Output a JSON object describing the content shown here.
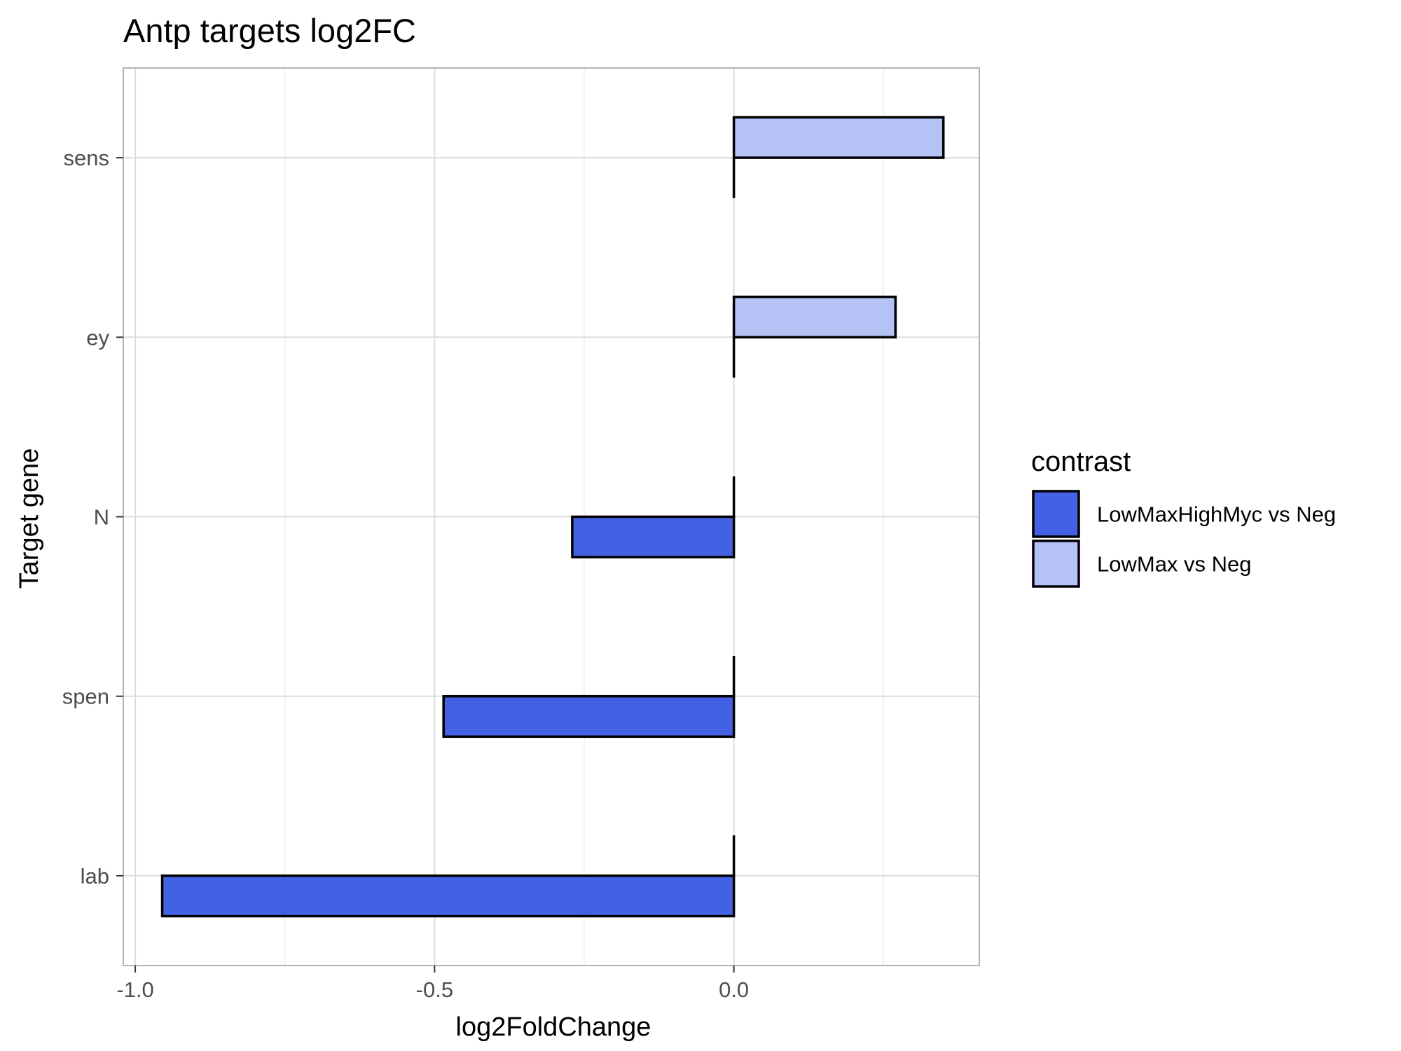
{
  "chart_data": {
    "type": "bar",
    "orientation": "horizontal",
    "title": "Antp targets log2FC",
    "xlabel": "log2FoldChange",
    "ylabel": "Target gene",
    "categories": [
      "sens",
      "ey",
      "N",
      "spen",
      "lab"
    ],
    "series": [
      {
        "name": "LowMaxHighMyc vs Neg",
        "color": "#4361e4",
        "values": [
          null,
          null,
          -0.27,
          -0.485,
          -0.955
        ]
      },
      {
        "name": "LowMax vs Neg",
        "color": "#b4c2f6",
        "values": [
          0.35,
          0.27,
          null,
          null,
          null
        ]
      }
    ],
    "xlim": [
      -1.02,
      0.41
    ],
    "xticks": [
      -1.0,
      -0.5,
      0.0
    ],
    "xtick_labels": [
      "-1.0",
      "-0.5",
      "0.0"
    ],
    "grid": true,
    "legend": {
      "title": "contrast",
      "position": "right"
    }
  }
}
